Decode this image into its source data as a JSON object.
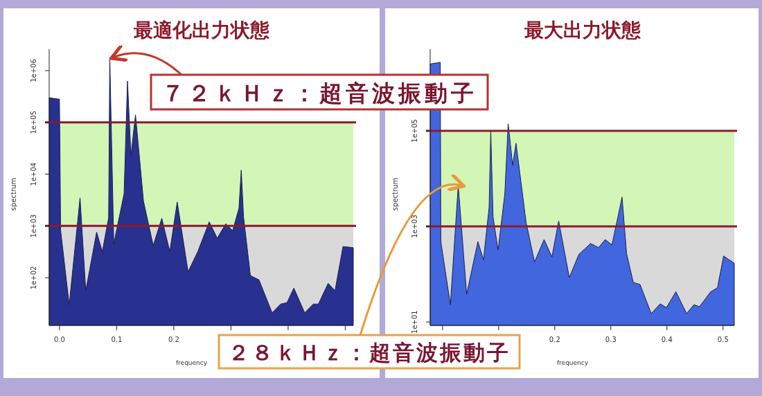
{
  "chart_data": [
    {
      "type": "area",
      "title": "最適化出力状態",
      "xlabel": "frequency",
      "ylabel": "spectrum",
      "log": "y",
      "x": [
        -0.018,
        0.0,
        0.002,
        0.017,
        0.036,
        0.046,
        0.065,
        0.075,
        0.086,
        0.088,
        0.095,
        0.113,
        0.119,
        0.125,
        0.133,
        0.147,
        0.164,
        0.179,
        0.193,
        0.206,
        0.225,
        0.242,
        0.262,
        0.276,
        0.291,
        0.303,
        0.314,
        0.318,
        0.322,
        0.334,
        0.349,
        0.372,
        0.387,
        0.398,
        0.41,
        0.429,
        0.444,
        0.453,
        0.47,
        0.482,
        0.496,
        0.514
      ],
      "series": [
        {
          "color": "#28318f",
          "values": [
            300000,
            280000,
            830,
            30,
            3500,
            56,
            760,
            320,
            1450,
            1800000,
            450,
            4200,
            630000,
            23000,
            140000,
            3000,
            420,
            1400,
            320,
            2900,
            130,
            320,
            1200,
            580,
            1100,
            810,
            2200,
            12000,
            1500,
            110,
            91,
            21,
            31,
            33,
            63,
            21,
            31,
            31,
            78,
            56,
            400,
            380
          ]
        }
      ],
      "xlim": [
        -0.018,
        0.514
      ],
      "ylim": [
        12,
        2600000
      ],
      "xticks": [
        {
          "value": 0,
          "label": "0.0"
        },
        0.1,
        0.2,
        {
          "value": 0.3,
          "label": null
        },
        {
          "value": 0.4,
          "label": null
        },
        {
          "value": 0.5,
          "label": null
        }
      ],
      "yticks": [
        {
          "value": 100,
          "label": "1e+02"
        },
        {
          "value": 1000,
          "label": "1e+03"
        },
        {
          "value": 10000,
          "label": "1e+04"
        },
        {
          "value": 100000,
          "label": "1e+05"
        },
        {
          "value": 1000000,
          "label": "1e+06"
        }
      ],
      "bands": [
        {
          "axis": "y",
          "from": 12,
          "to": 1000,
          "color": "#d9d9d9"
        },
        {
          "axis": "y",
          "from": 1000,
          "to": 100000,
          "color": "#d3f5b6"
        }
      ],
      "ref_lines": [
        {
          "axis": "y",
          "value": 1000,
          "color": "#8b1a2b"
        },
        {
          "axis": "y",
          "value": 100000,
          "color": "#8b1a2b"
        }
      ],
      "annotations": [
        {
          "text": "７２ｋＨｚ：超音波振動子",
          "x": 0.088,
          "y": 1800000
        }
      ]
    },
    {
      "type": "area",
      "title": "最大出力状態",
      "xlabel": "frequency",
      "ylabel": "spectrum",
      "log": "y",
      "x": [
        -0.022,
        -0.004,
        -0.003,
        0.014,
        0.028,
        0.043,
        0.063,
        0.073,
        0.083,
        0.086,
        0.09,
        0.099,
        0.111,
        0.117,
        0.125,
        0.131,
        0.149,
        0.164,
        0.181,
        0.195,
        0.207,
        0.226,
        0.243,
        0.264,
        0.278,
        0.29,
        0.302,
        0.32,
        0.328,
        0.34,
        0.352,
        0.372,
        0.388,
        0.399,
        0.416,
        0.435,
        0.448,
        0.458,
        0.478,
        0.49,
        0.501,
        0.52
      ],
      "series": [
        {
          "color": "#4166dd",
          "values": [
            2500000,
            2700000,
            480,
            23,
            7200,
            38,
            480,
            200,
            2500,
            100000,
            1600,
            320,
            4800,
            140000,
            19000,
            55000,
            1200,
            180,
            530,
            230,
            1300,
            85,
            260,
            440,
            360,
            530,
            410,
            4100,
            270,
            67,
            61,
            15,
            24,
            20,
            43,
            15,
            23,
            21,
            43,
            52,
            240,
            170
          ]
        }
      ],
      "xlim": [
        -0.022,
        0.52
      ],
      "ylim": [
        8.5,
        5100000
      ],
      "xticks": [
        {
          "value": 0,
          "label": null
        },
        {
          "value": 0.1,
          "label": null
        },
        0.2,
        0.3,
        0.4,
        0.5
      ],
      "yticks": [
        {
          "value": 10,
          "label": "1e+01"
        },
        {
          "value": 1000,
          "label": "1e+03"
        },
        {
          "value": 100000,
          "label": "1e+05"
        }
      ],
      "bands": [
        {
          "axis": "y",
          "from": 8.5,
          "to": 1000,
          "color": "#d9d9d9"
        },
        {
          "axis": "y",
          "from": 1000,
          "to": 100000,
          "color": "#d3f5b6"
        }
      ],
      "ref_lines": [
        {
          "axis": "y",
          "value": 1000,
          "color": "#8b1a2b"
        },
        {
          "axis": "y",
          "value": 100000,
          "color": "#8b1a2b"
        }
      ],
      "annotations": [
        {
          "text": "２８ｋＨｚ：超音波振動子",
          "x": 0.028,
          "y": 7200
        }
      ]
    }
  ]
}
